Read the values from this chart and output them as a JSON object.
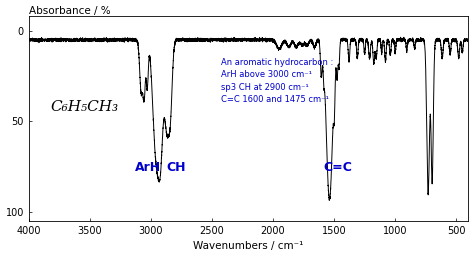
{
  "title": "Absorbance / %",
  "xlabel": "Wavenumbers / cm⁻¹",
  "background_color": "#ffffff",
  "spectrum_color": "#000000",
  "annotation_color": "#0000cc",
  "label_compound": "C₆H₅CH₃",
  "label_ArH": "ArH",
  "label_CH": "CH",
  "label_CC": "C=C",
  "annotation_text": "An aromatic hydrocarbon :\nArH above 3000 cm⁻¹\nsp3 CH at 2900 cm⁻¹\nC=C 1600 and 1475 cm⁻¹",
  "xlim": [
    4000,
    400
  ],
  "ylim": [
    105,
    -8
  ],
  "xticks": [
    4000,
    3500,
    3000,
    2500,
    2000,
    1500,
    1000,
    500
  ],
  "yticks": [
    0,
    50,
    100
  ],
  "ytick_labels": [
    "0",
    "50",
    "100"
  ]
}
